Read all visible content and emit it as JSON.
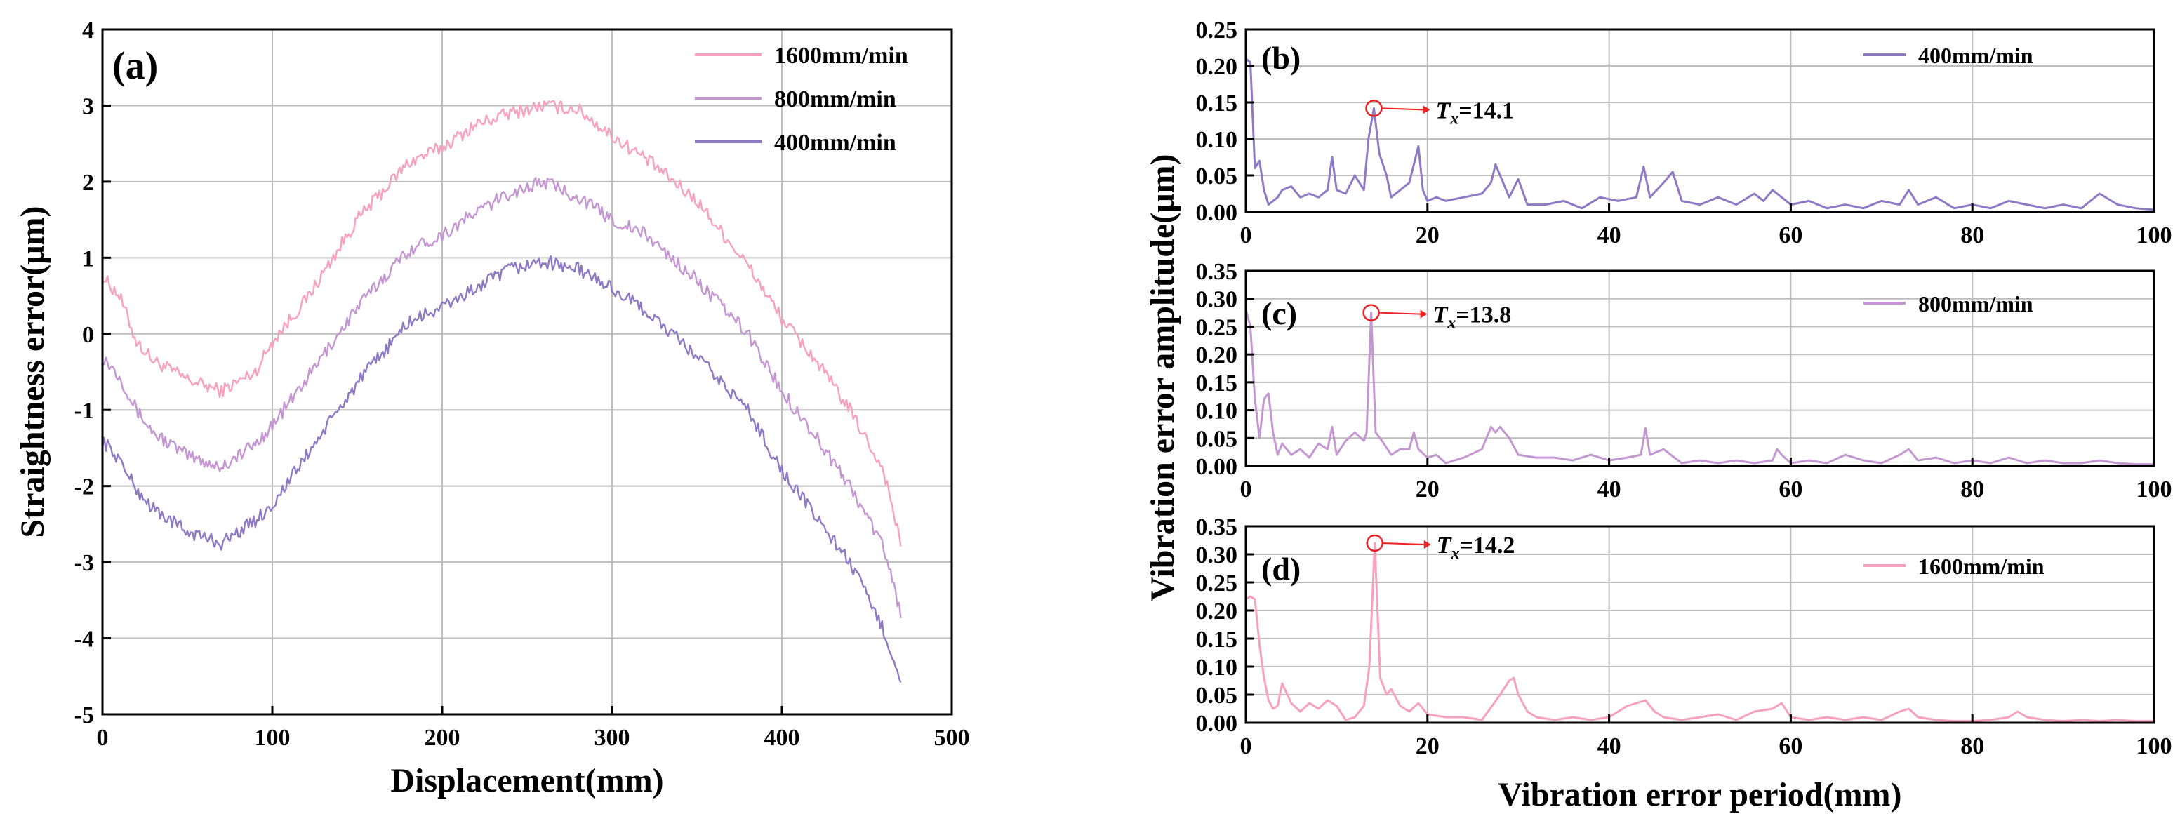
{
  "colors": {
    "pink": "#f7a1be",
    "lilac": "#c597d2",
    "violet": "#8e7ac4",
    "grid": "#bdbdbd",
    "marker": "#ee2222"
  },
  "chart_data": [
    {
      "id": "a",
      "panel_label": "(a)",
      "type": "line",
      "xlabel": "Displacement(mm)",
      "ylabel": "Straightness error(μm)",
      "xlim": [
        0,
        500
      ],
      "ylim": [
        -5,
        4
      ],
      "xticks": [
        "0",
        "100",
        "200",
        "300",
        "400",
        "500"
      ],
      "yticks": [
        "-5",
        "-4",
        "-3",
        "-2",
        "-1",
        "0",
        "1",
        "2",
        "3",
        "4"
      ],
      "legend_position": "top-right",
      "series": [
        {
          "name": "1600mm/min",
          "color": "pink",
          "noise": 0.09,
          "x": [
            0,
            10,
            20,
            30,
            50,
            70,
            90,
            100,
            120,
            150,
            180,
            200,
            220,
            240,
            260,
            280,
            300,
            320,
            350,
            380,
            400,
            420,
            440,
            460,
            470
          ],
          "y": [
            0.75,
            0.5,
            -0.1,
            -0.35,
            -0.6,
            -0.75,
            -0.5,
            -0.1,
            0.45,
            1.5,
            2.25,
            2.45,
            2.75,
            2.9,
            3.0,
            2.95,
            2.6,
            2.3,
            1.75,
            0.9,
            0.2,
            -0.35,
            -1.0,
            -1.8,
            -2.75
          ]
        },
        {
          "name": "800mm/min",
          "color": "lilac",
          "noise": 0.09,
          "x": [
            0,
            10,
            20,
            30,
            50,
            70,
            90,
            100,
            120,
            150,
            180,
            200,
            220,
            240,
            260,
            280,
            300,
            320,
            350,
            380,
            400,
            420,
            440,
            460,
            470
          ],
          "y": [
            -0.3,
            -0.55,
            -1.0,
            -1.3,
            -1.6,
            -1.75,
            -1.45,
            -1.2,
            -0.6,
            0.35,
            1.1,
            1.3,
            1.6,
            1.85,
            2.0,
            1.8,
            1.5,
            1.3,
            0.7,
            0.0,
            -0.75,
            -1.35,
            -2.0,
            -2.8,
            -3.7
          ]
        },
        {
          "name": "400mm/min",
          "color": "violet",
          "noise": 0.09,
          "x": [
            0,
            10,
            20,
            30,
            50,
            70,
            90,
            100,
            120,
            150,
            180,
            200,
            220,
            240,
            260,
            280,
            300,
            320,
            350,
            380,
            400,
            420,
            440,
            460,
            470
          ],
          "y": [
            -1.4,
            -1.65,
            -2.05,
            -2.3,
            -2.6,
            -2.75,
            -2.45,
            -2.25,
            -1.6,
            -0.65,
            0.15,
            0.35,
            0.6,
            0.85,
            0.95,
            0.85,
            0.6,
            0.3,
            -0.3,
            -1.0,
            -1.8,
            -2.4,
            -3.0,
            -3.9,
            -4.55
          ]
        }
      ]
    },
    {
      "id": "b",
      "panel_label": "(b)",
      "type": "line",
      "xlabel": "",
      "ylabel": "",
      "xlim": [
        0,
        100
      ],
      "ylim": [
        0,
        0.25
      ],
      "xticks": [
        "0",
        "20",
        "40",
        "60",
        "80",
        "100"
      ],
      "yticks": [
        "0.00",
        "0.05",
        "0.10",
        "0.15",
        "0.20",
        "0.25"
      ],
      "legend_position": "top-right",
      "annotation": {
        "prefix": "T",
        "subscript": "x",
        "text": "=14.1",
        "x": 14.1,
        "y": 0.142
      },
      "series": [
        {
          "name": "400mm/min",
          "color": "violet",
          "x": [
            0,
            0.5,
            1,
            1.5,
            2,
            2.5,
            3,
            3.5,
            4,
            5,
            6,
            7,
            8,
            9,
            9.5,
            10,
            11,
            12,
            13,
            13.5,
            14.1,
            14.7,
            15.5,
            16,
            17,
            18,
            19,
            19.5,
            20,
            21,
            22,
            24,
            26,
            27,
            27.5,
            28,
            29,
            30,
            31,
            33,
            35,
            37,
            39,
            41,
            43,
            43.8,
            44.5,
            46,
            47,
            48,
            50,
            52,
            54,
            56,
            57,
            58,
            60,
            62,
            64,
            66,
            68,
            70,
            72,
            73,
            74,
            76,
            78,
            80,
            82,
            84,
            86,
            88,
            90,
            92,
            94,
            96,
            98,
            100
          ],
          "y": [
            0.21,
            0.205,
            0.06,
            0.07,
            0.03,
            0.01,
            0.015,
            0.02,
            0.03,
            0.035,
            0.02,
            0.025,
            0.02,
            0.03,
            0.075,
            0.03,
            0.025,
            0.05,
            0.03,
            0.1,
            0.142,
            0.08,
            0.05,
            0.02,
            0.03,
            0.04,
            0.09,
            0.03,
            0.015,
            0.02,
            0.015,
            0.02,
            0.025,
            0.04,
            0.065,
            0.05,
            0.02,
            0.045,
            0.01,
            0.01,
            0.015,
            0.005,
            0.02,
            0.015,
            0.02,
            0.062,
            0.02,
            0.04,
            0.055,
            0.015,
            0.01,
            0.02,
            0.01,
            0.025,
            0.015,
            0.03,
            0.01,
            0.015,
            0.005,
            0.01,
            0.005,
            0.015,
            0.01,
            0.03,
            0.01,
            0.02,
            0.005,
            0.01,
            0.005,
            0.015,
            0.01,
            0.005,
            0.01,
            0.005,
            0.025,
            0.01,
            0.005,
            0.003
          ]
        }
      ]
    },
    {
      "id": "c",
      "panel_label": "(c)",
      "type": "line",
      "xlabel": "",
      "ylabel": "",
      "xlim": [
        0,
        100
      ],
      "ylim": [
        0,
        0.35
      ],
      "xticks": [
        "0",
        "20",
        "40",
        "60",
        "80",
        "100"
      ],
      "yticks": [
        "0.00",
        "0.05",
        "0.10",
        "0.15",
        "0.20",
        "0.25",
        "0.30",
        "0.35"
      ],
      "legend_position": "top-right",
      "annotation": {
        "prefix": "T",
        "subscript": "x",
        "text": "=13.8",
        "x": 13.8,
        "y": 0.275
      },
      "series": [
        {
          "name": "800mm/min",
          "color": "lilac",
          "x": [
            0,
            0.5,
            1,
            1.5,
            2,
            2.5,
            3,
            3.5,
            4,
            5,
            6,
            7,
            8,
            9,
            9.5,
            10,
            11,
            12,
            13,
            13.3,
            13.8,
            14.3,
            15,
            16,
            17,
            18,
            18.5,
            19,
            20,
            21,
            22,
            24,
            26,
            27,
            27.5,
            28,
            29,
            30,
            32,
            34,
            36,
            38,
            40,
            42,
            43.5,
            44,
            44.5,
            46,
            48,
            50,
            52,
            54,
            56,
            58,
            58.5,
            59,
            60,
            62,
            64,
            66,
            68,
            70,
            72,
            73,
            74,
            76,
            78,
            80,
            82,
            84,
            86,
            88,
            90,
            92,
            94,
            96,
            98,
            100
          ],
          "y": [
            0.28,
            0.25,
            0.12,
            0.05,
            0.12,
            0.13,
            0.06,
            0.02,
            0.04,
            0.02,
            0.03,
            0.015,
            0.04,
            0.03,
            0.07,
            0.02,
            0.045,
            0.06,
            0.045,
            0.06,
            0.275,
            0.06,
            0.045,
            0.02,
            0.03,
            0.03,
            0.06,
            0.03,
            0.015,
            0.02,
            0.005,
            0.015,
            0.03,
            0.07,
            0.06,
            0.07,
            0.05,
            0.02,
            0.015,
            0.015,
            0.01,
            0.02,
            0.01,
            0.015,
            0.02,
            0.068,
            0.02,
            0.03,
            0.005,
            0.01,
            0.005,
            0.01,
            0.005,
            0.01,
            0.03,
            0.02,
            0.005,
            0.01,
            0.005,
            0.02,
            0.01,
            0.005,
            0.02,
            0.03,
            0.01,
            0.015,
            0.005,
            0.01,
            0.005,
            0.015,
            0.005,
            0.01,
            0.005,
            0.005,
            0.01,
            0.005,
            0.003,
            0.003
          ]
        }
      ]
    },
    {
      "id": "d",
      "panel_label": "(d)",
      "type": "line",
      "xlabel": "",
      "ylabel": "",
      "xlim": [
        0,
        100
      ],
      "ylim": [
        0,
        0.35
      ],
      "xticks": [
        "0",
        "20",
        "40",
        "60",
        "80",
        "100"
      ],
      "yticks": [
        "0.00",
        "0.05",
        "0.10",
        "0.15",
        "0.20",
        "0.25",
        "0.30",
        "0.35"
      ],
      "legend_position": "top-right",
      "annotation": {
        "prefix": "T",
        "subscript": "x",
        "text": "=14.2",
        "x": 14.2,
        "y": 0.32
      },
      "series": [
        {
          "name": "1600mm/min",
          "color": "pink",
          "x": [
            0,
            0.5,
            1,
            1.5,
            2,
            2.5,
            3,
            3.5,
            4,
            5,
            6,
            7,
            8,
            9,
            10,
            11,
            12,
            13,
            13.6,
            14.2,
            14.8,
            15.5,
            16,
            17,
            18,
            19,
            20,
            22,
            24,
            26,
            28,
            29,
            29.5,
            30,
            31,
            32,
            34,
            36,
            38,
            40,
            42,
            44,
            45,
            46,
            48,
            50,
            52,
            54,
            56,
            58,
            59,
            60,
            62,
            64,
            66,
            68,
            70,
            72,
            73,
            74,
            76,
            78,
            80,
            82,
            84,
            85,
            86,
            88,
            90,
            92,
            94,
            96,
            98,
            100
          ],
          "y": [
            0.22,
            0.225,
            0.22,
            0.14,
            0.08,
            0.04,
            0.025,
            0.03,
            0.07,
            0.035,
            0.02,
            0.035,
            0.025,
            0.04,
            0.03,
            0.005,
            0.01,
            0.03,
            0.1,
            0.32,
            0.08,
            0.05,
            0.06,
            0.03,
            0.02,
            0.035,
            0.015,
            0.01,
            0.01,
            0.005,
            0.05,
            0.075,
            0.08,
            0.05,
            0.02,
            0.01,
            0.005,
            0.01,
            0.005,
            0.01,
            0.03,
            0.04,
            0.02,
            0.01,
            0.005,
            0.01,
            0.015,
            0.005,
            0.02,
            0.025,
            0.035,
            0.01,
            0.005,
            0.01,
            0.005,
            0.01,
            0.005,
            0.02,
            0.025,
            0.01,
            0.005,
            0.003,
            0.003,
            0.005,
            0.01,
            0.02,
            0.01,
            0.005,
            0.003,
            0.005,
            0.003,
            0.005,
            0.003,
            0.003
          ]
        }
      ]
    }
  ],
  "shared_labels": {
    "right_ylabel": "Vibration error amplitude(μm)",
    "right_xlabel": "Vibration error period(mm)"
  }
}
